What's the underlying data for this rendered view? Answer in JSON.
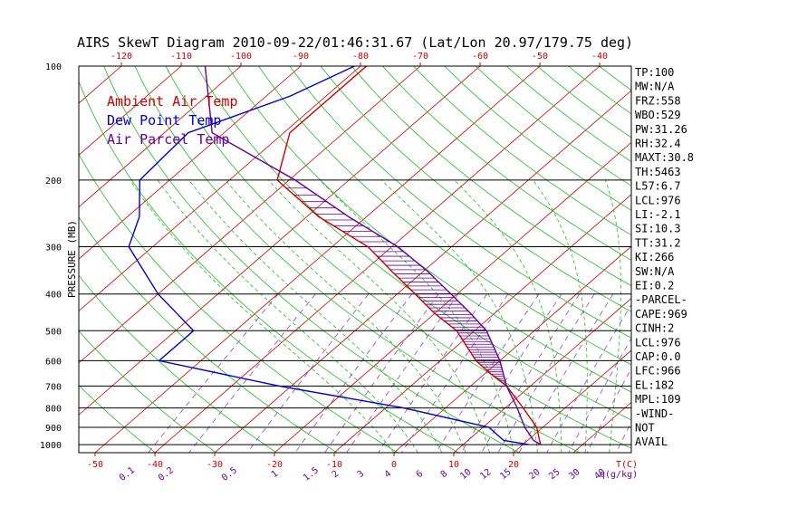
{
  "chart_data": {
    "type": "skewt",
    "title": "AIRS SkewT Diagram 2010-09-22/01:46:31.67 (Lat/Lon 20.97/179.75 deg)",
    "ylabel": "PRESSURE (MB)",
    "pressure_ticks": [
      100,
      200,
      300,
      400,
      500,
      600,
      700,
      800,
      900,
      1000
    ],
    "pressure_range": [
      100,
      1050
    ],
    "top_temp_ticks": [
      -120,
      -110,
      -100,
      -90,
      -80,
      -70,
      -60,
      -50,
      -40
    ],
    "bottom_temp_ticks": [
      -50,
      -40,
      -30,
      -20,
      -10,
      0,
      10,
      20
    ],
    "bottom_temp_unit": "T(C)",
    "mixing_ratio_labels": [
      "0.1",
      "0.2",
      "0.5",
      "1",
      "1.5",
      "2",
      "3",
      "4",
      "6",
      "8",
      "10",
      "12",
      "15",
      "20",
      "25",
      "30",
      "40"
    ],
    "mixing_ratio_unit": "q(g/kg)",
    "legend": [
      {
        "label": "Ambient Air Temp",
        "color": "#cc0000"
      },
      {
        "label": "Dew Point Temp",
        "color": "#0000cc"
      },
      {
        "label": "Air Parcel Temp",
        "color": "#660099"
      }
    ],
    "series": [
      {
        "name": "Ambient Air Temp",
        "points": [
          [
            100,
            -79
          ],
          [
            150,
            -79
          ],
          [
            200,
            -72
          ],
          [
            250,
            -58
          ],
          [
            300,
            -44
          ],
          [
            350,
            -35
          ],
          [
            400,
            -27
          ],
          [
            450,
            -20
          ],
          [
            500,
            -13
          ],
          [
            600,
            -4
          ],
          [
            650,
            1
          ],
          [
            700,
            6
          ],
          [
            800,
            13
          ],
          [
            900,
            19
          ],
          [
            975,
            22
          ],
          [
            1000,
            23
          ]
        ]
      },
      {
        "name": "Dew Point Temp",
        "points": [
          [
            100,
            -81
          ],
          [
            120,
            -86
          ],
          [
            150,
            -96
          ],
          [
            200,
            -95
          ],
          [
            250,
            -88
          ],
          [
            300,
            -84
          ],
          [
            400,
            -70
          ],
          [
            500,
            -57
          ],
          [
            600,
            -57
          ],
          [
            700,
            -32
          ],
          [
            800,
            -7
          ],
          [
            900,
            11
          ],
          [
            975,
            16
          ],
          [
            1000,
            21
          ]
        ]
      },
      {
        "name": "Air Parcel Temp",
        "points": [
          [
            100,
            -106
          ],
          [
            150,
            -92
          ],
          [
            200,
            -69
          ],
          [
            250,
            -53
          ],
          [
            300,
            -39
          ],
          [
            350,
            -29
          ],
          [
            400,
            -21
          ],
          [
            450,
            -14
          ],
          [
            500,
            -8
          ],
          [
            600,
            0
          ],
          [
            700,
            6
          ],
          [
            800,
            12
          ],
          [
            900,
            17
          ],
          [
            975,
            21
          ],
          [
            1000,
            23
          ]
        ]
      }
    ],
    "indices": [
      "TP:100",
      "MW:N/A",
      "FRZ:558",
      "WBO:529",
      "PW:31.26",
      "RH:32.4",
      "MAXT:30.8",
      "TH:5463",
      "L57:6.7",
      "LCL:976",
      "LI:-2.1",
      "SI:10.3",
      "TT:31.2",
      "KI:266",
      "SW:N/A",
      "EI:0.2",
      "-PARCEL-",
      "CAPE:969",
      "CINH:2",
      "LCL:976",
      "CAP:0.0",
      "LFC:966",
      "EL:182",
      "MPL:109",
      "-WIND-",
      "NOT",
      "AVAIL"
    ]
  }
}
